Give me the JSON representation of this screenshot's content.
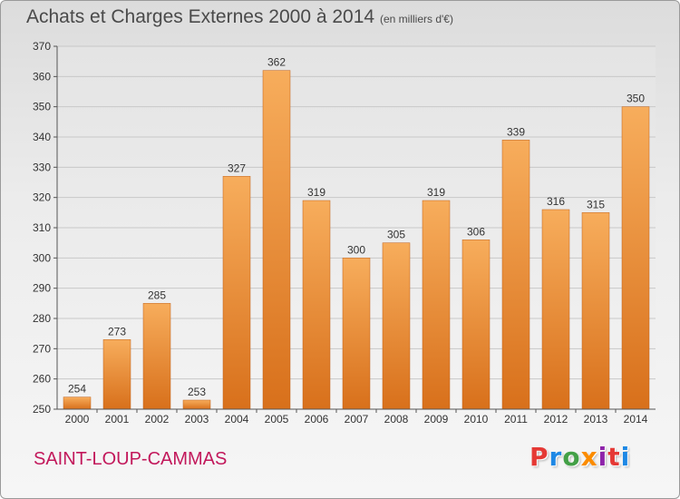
{
  "header": {
    "title": "Achats et Charges Externes 2000 à 2014",
    "subtitle": "(en milliers d'€)"
  },
  "footer": {
    "commune": "SAINT-LOUP-CAMMAS",
    "brand": "Proxiti",
    "brand_colors": [
      "#e53935",
      "#1e88e5",
      "#43a047",
      "#fb8c00",
      "#8e24aa",
      "#e53935",
      "#1e88e5"
    ]
  },
  "colors": {
    "bar_light": "#f7ad5c",
    "bar_dark": "#d8701b",
    "grid": "#c8c8c8",
    "axis": "#555555",
    "label": "#333333"
  },
  "chart_data": {
    "type": "bar",
    "title": "Achats et Charges Externes 2000 à 2014",
    "subtitle": "(en milliers d'€)",
    "categories": [
      "2000",
      "2001",
      "2002",
      "2003",
      "2004",
      "2005",
      "2006",
      "2007",
      "2008",
      "2009",
      "2010",
      "2011",
      "2012",
      "2013",
      "2014"
    ],
    "values": [
      254,
      273,
      285,
      253,
      327,
      362,
      319,
      300,
      305,
      319,
      306,
      339,
      316,
      315,
      350
    ],
    "ylim": [
      250,
      370
    ],
    "yticks": [
      250,
      260,
      270,
      280,
      290,
      300,
      310,
      320,
      330,
      340,
      350,
      360,
      370
    ],
    "grid": true,
    "legend": "none"
  }
}
